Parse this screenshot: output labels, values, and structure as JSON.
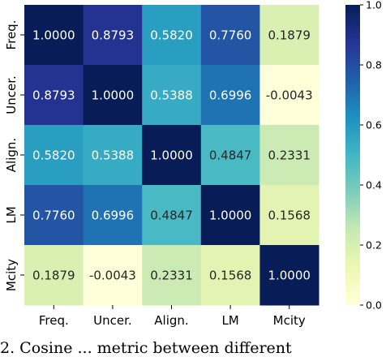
{
  "chart_data": {
    "type": "heatmap",
    "title": "",
    "xlabel": "",
    "ylabel": "",
    "x_labels": [
      "Freq.",
      "Uncer.",
      "Align.",
      "LM",
      "Mcity"
    ],
    "y_labels": [
      "Freq.",
      "Uncer.",
      "Align.",
      "LM",
      "Mcity"
    ],
    "values": [
      [
        1.0,
        0.8793,
        0.582,
        0.776,
        0.1879
      ],
      [
        0.8793,
        1.0,
        0.5388,
        0.6996,
        -0.0043
      ],
      [
        0.582,
        0.5388,
        1.0,
        0.4847,
        0.2331
      ],
      [
        0.776,
        0.6996,
        0.4847,
        1.0,
        0.1568
      ],
      [
        0.1879,
        -0.0043,
        0.2331,
        0.1568,
        1.0
      ]
    ],
    "cell_labels": [
      [
        "1.0000",
        "0.8793",
        "0.5820",
        "0.7760",
        "0.1879"
      ],
      [
        "0.8793",
        "1.0000",
        "0.5388",
        "0.6996",
        "-0.0043"
      ],
      [
        "0.5820",
        "0.5388",
        "1.0000",
        "0.4847",
        "0.2331"
      ],
      [
        "0.7760",
        "0.6996",
        "0.4847",
        "1.0000",
        "0.1568"
      ],
      [
        "0.1879",
        "-0.0043",
        "0.2331",
        "0.1568",
        "1.0000"
      ]
    ],
    "colormap": "YlGnBu",
    "colorbar": {
      "range": [
        0.0,
        1.0
      ],
      "ticks": [
        0.0,
        0.2,
        0.4,
        0.6,
        0.8,
        1.0
      ],
      "tick_labels": [
        "0.0",
        "0.2",
        "0.4",
        "0.6",
        "0.8",
        "1.0"
      ]
    }
  },
  "caption": "2. Cosine ... metric between different"
}
